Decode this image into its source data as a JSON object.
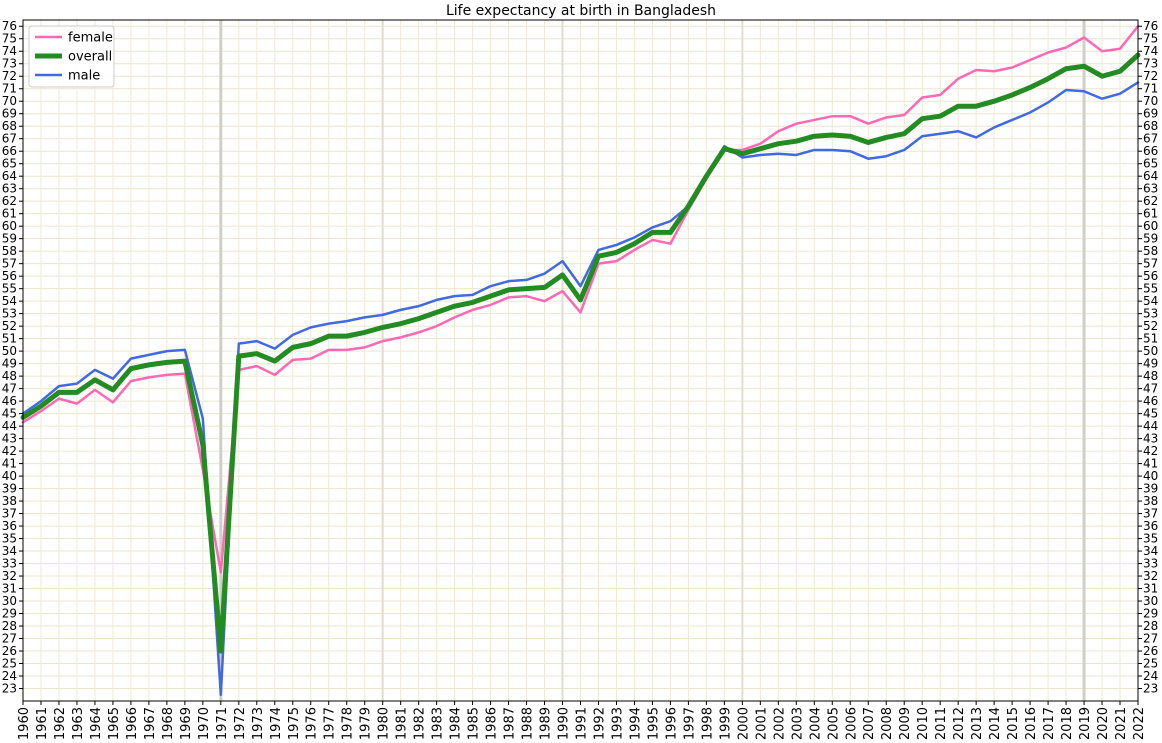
{
  "chart_data": {
    "type": "line",
    "title": "Life expectancy at birth in Bangladesh",
    "xlabel": "",
    "ylabel": "",
    "x": [
      1960,
      1961,
      1962,
      1963,
      1964,
      1965,
      1966,
      1967,
      1968,
      1969,
      1970,
      1971,
      1972,
      1973,
      1974,
      1975,
      1976,
      1977,
      1978,
      1979,
      1980,
      1981,
      1982,
      1983,
      1984,
      1985,
      1986,
      1987,
      1988,
      1989,
      1990,
      1991,
      1992,
      1993,
      1994,
      1995,
      1996,
      1997,
      1998,
      1999,
      2000,
      2001,
      2002,
      2003,
      2004,
      2005,
      2006,
      2007,
      2008,
      2009,
      2010,
      2011,
      2012,
      2013,
      2014,
      2015,
      2016,
      2017,
      2018,
      2019,
      2020,
      2021,
      2022
    ],
    "xlim": [
      1960,
      2022
    ],
    "ylim": [
      22,
      76.5
    ],
    "y_ticks": [
      23,
      24,
      25,
      26,
      27,
      28,
      29,
      30,
      31,
      32,
      33,
      34,
      35,
      36,
      37,
      38,
      39,
      40,
      41,
      42,
      43,
      44,
      45,
      46,
      47,
      48,
      49,
      50,
      51,
      52,
      53,
      54,
      55,
      56,
      57,
      58,
      59,
      60,
      61,
      62,
      63,
      64,
      65,
      66,
      67,
      68,
      69,
      70,
      71,
      72,
      73,
      74,
      75,
      76
    ],
    "grid": true,
    "legend_position": "top-left",
    "vertical_markers": [
      1971,
      2019
    ],
    "series": [
      {
        "name": "female",
        "color": "#ff69b4",
        "width": 2.5,
        "values": [
          44.3,
          45.2,
          46.2,
          45.8,
          46.9,
          45.9,
          47.6,
          47.9,
          48.1,
          48.2,
          40.5,
          32.3,
          48.5,
          48.8,
          48.1,
          49.3,
          49.4,
          50.1,
          50.1,
          50.3,
          50.8,
          51.1,
          51.5,
          52.0,
          52.7,
          53.3,
          53.7,
          54.3,
          54.4,
          54.0,
          54.8,
          53.1,
          57.0,
          57.2,
          58.1,
          58.9,
          58.6,
          61.3,
          63.8,
          66.1,
          66.1,
          66.6,
          67.6,
          68.2,
          68.5,
          68.8,
          68.8,
          68.2,
          68.7,
          68.9,
          70.3,
          70.5,
          71.8,
          72.5,
          72.4,
          72.7,
          73.3,
          73.9,
          74.3,
          75.1,
          74.0,
          74.2,
          76.0
        ]
      },
      {
        "name": "overall",
        "color": "#228b22",
        "width": 5,
        "values": [
          44.7,
          45.6,
          46.7,
          46.7,
          47.7,
          46.9,
          48.6,
          48.9,
          49.1,
          49.2,
          42.5,
          26.0,
          49.6,
          49.8,
          49.2,
          50.3,
          50.6,
          51.2,
          51.2,
          51.5,
          51.9,
          52.2,
          52.6,
          53.1,
          53.6,
          53.9,
          54.4,
          54.9,
          55.0,
          55.1,
          56.1,
          54.1,
          57.6,
          57.9,
          58.6,
          59.5,
          59.5,
          61.6,
          64.0,
          66.2,
          65.8,
          66.2,
          66.6,
          66.8,
          67.2,
          67.3,
          67.2,
          66.7,
          67.1,
          67.4,
          68.6,
          68.8,
          69.6,
          69.6,
          70.0,
          70.5,
          71.1,
          71.8,
          72.6,
          72.8,
          72.0,
          72.4,
          73.7
        ]
      },
      {
        "name": "male",
        "color": "#4169e1",
        "width": 2.5,
        "values": [
          45.0,
          46.0,
          47.2,
          47.4,
          48.5,
          47.8,
          49.4,
          49.7,
          50.0,
          50.1,
          44.6,
          22.5,
          50.6,
          50.8,
          50.2,
          51.3,
          51.9,
          52.2,
          52.4,
          52.7,
          52.9,
          53.3,
          53.6,
          54.1,
          54.4,
          54.5,
          55.2,
          55.6,
          55.7,
          56.2,
          57.2,
          55.2,
          58.1,
          58.5,
          59.1,
          59.9,
          60.4,
          61.6,
          64.1,
          66.4,
          65.5,
          65.7,
          65.8,
          65.7,
          66.1,
          66.1,
          66.0,
          65.4,
          65.6,
          66.1,
          67.2,
          67.4,
          67.6,
          67.1,
          67.9,
          68.5,
          69.1,
          69.9,
          70.9,
          70.8,
          70.2,
          70.6,
          71.5
        ]
      }
    ]
  }
}
